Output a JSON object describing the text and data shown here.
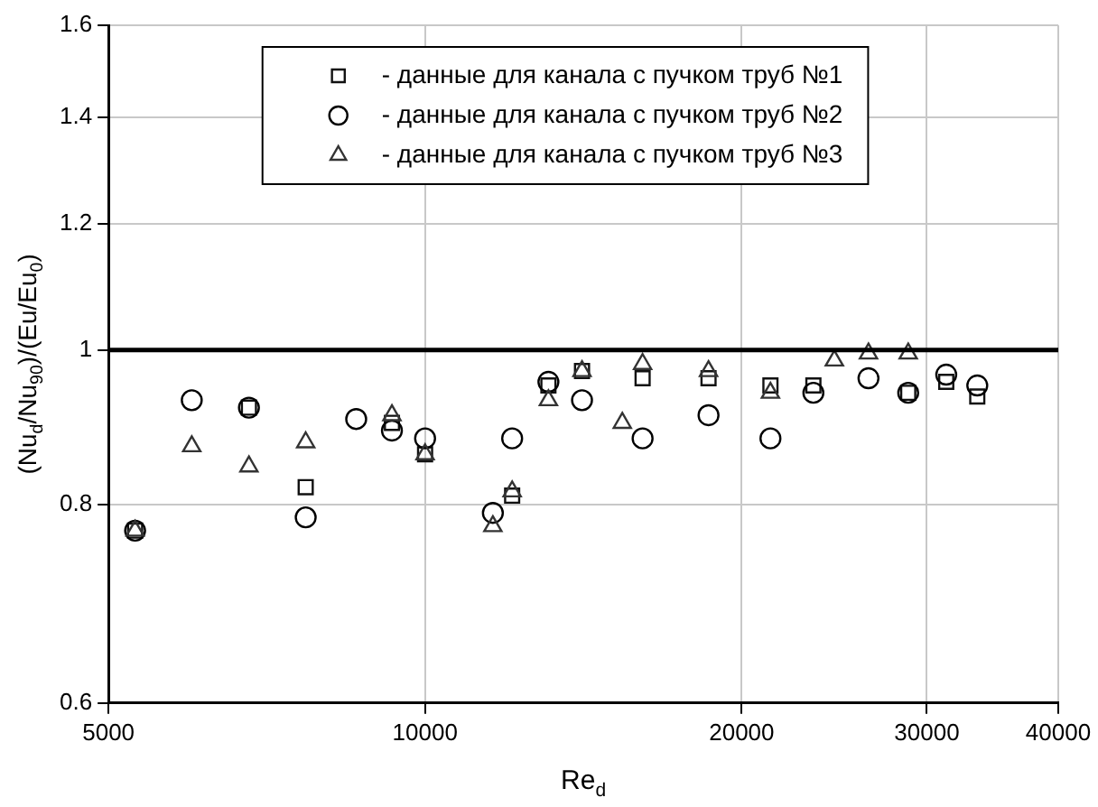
{
  "chart_data": {
    "type": "scatter",
    "xlabel": "Re$_{d}$",
    "ylabel": "(Nu$_{d}$/Nu$_{90}$)/(Eu/Eu$_{0}$)",
    "log": "xy",
    "grid": true,
    "legend": "top",
    "xlim": [
      5000,
      40000
    ],
    "xticks": [
      5000,
      10000,
      20000,
      30000,
      40000
    ],
    "ylim": [
      0.6,
      1.6
    ],
    "yticks": [
      0.6,
      0.8,
      1,
      1.2,
      1.4,
      1.6
    ],
    "ref_lines": [
      {
        "axis": "y",
        "value": 1,
        "color": "#000000"
      }
    ],
    "series": [
      {
        "name": "- данные для канала с пучком труб №1",
        "marker": "square",
        "color": "#111111",
        "x": [
          5300,
          6800,
          7700,
          9300,
          10000,
          12100,
          13100,
          14100,
          16100,
          18600,
          21300,
          23400,
          28800,
          31300,
          33500
        ],
        "values": [
          0.77,
          0.92,
          0.82,
          0.9,
          0.86,
          0.81,
          0.95,
          0.97,
          0.96,
          0.96,
          0.95,
          0.95,
          0.94,
          0.955,
          0.935
        ]
      },
      {
        "name": "- данные для канала с пучком труб №2",
        "marker": "circle",
        "color": "#000000",
        "x": [
          5300,
          6000,
          6800,
          7700,
          8600,
          9300,
          10000,
          11600,
          12100,
          13100,
          14100,
          16100,
          18600,
          21300,
          23400,
          26400,
          28800,
          31300,
          33500
        ],
        "values": [
          0.77,
          0.93,
          0.92,
          0.785,
          0.905,
          0.89,
          0.88,
          0.79,
          0.88,
          0.955,
          0.93,
          0.88,
          0.91,
          0.88,
          0.94,
          0.96,
          0.94,
          0.965,
          0.95
        ]
      },
      {
        "name": "- данные для канала с пучком труб №3",
        "marker": "triangle",
        "color": "#333333",
        "x": [
          5300,
          6000,
          6800,
          7700,
          9300,
          10000,
          11600,
          12100,
          13100,
          14100,
          15400,
          16100,
          18600,
          21300,
          24500,
          26400,
          28800
        ],
        "values": [
          0.77,
          0.87,
          0.845,
          0.875,
          0.91,
          0.86,
          0.775,
          0.815,
          0.93,
          0.97,
          0.9,
          0.98,
          0.97,
          0.94,
          0.985,
          0.995,
          0.995
        ]
      }
    ]
  }
}
